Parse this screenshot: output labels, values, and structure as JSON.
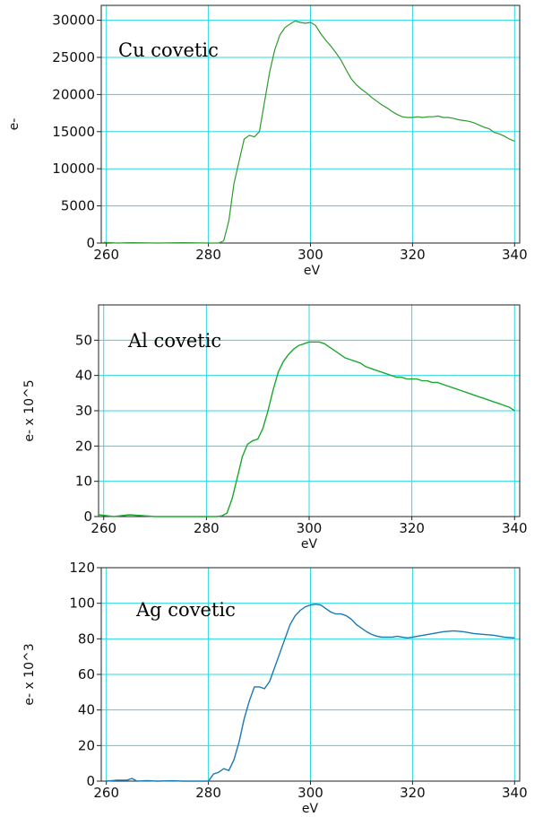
{
  "chart_data": [
    {
      "type": "line",
      "title": "Cu covetic",
      "xlabel": "eV",
      "ylabel": "e-",
      "xlim": [
        259,
        341
      ],
      "ylim": [
        0,
        32000
      ],
      "xticks": [
        260,
        280,
        300,
        320,
        340
      ],
      "yticks": [
        0,
        5000,
        10000,
        15000,
        20000,
        25000,
        30000
      ],
      "xtick_labels": [
        "260",
        "280",
        "300",
        "320",
        "340"
      ],
      "ytick_labels": [
        "0",
        "5000",
        "10000",
        "15000",
        "20000",
        "25000",
        "30000"
      ],
      "grid": true,
      "colors": {
        "line": "#2e9a2e",
        "grid": "#2ed8e0"
      },
      "series": [
        {
          "x": [
            259.5,
            262,
            265,
            270,
            275,
            280,
            282,
            283,
            284,
            285,
            286,
            287,
            288,
            289,
            290,
            291,
            292,
            293,
            294,
            295,
            296,
            297,
            298,
            299,
            300,
            301,
            302,
            303,
            304,
            305,
            306,
            307,
            308,
            309,
            310,
            311,
            312,
            313,
            314,
            315,
            316,
            317,
            318,
            319,
            320,
            321,
            322,
            323,
            324,
            325,
            326,
            327,
            328,
            329,
            330,
            331,
            332,
            333,
            334,
            335,
            336,
            337,
            338,
            339,
            340
          ],
          "y": [
            100,
            0,
            50,
            0,
            50,
            0,
            0,
            300,
            3000,
            8000,
            11000,
            14000,
            14500,
            14300,
            15000,
            19000,
            23000,
            26000,
            28000,
            29000,
            29500,
            29900,
            29700,
            29600,
            29700,
            29300,
            28200,
            27300,
            26500,
            25600,
            24600,
            23300,
            22100,
            21300,
            20700,
            20200,
            19600,
            19100,
            18600,
            18200,
            17700,
            17300,
            17000,
            16900,
            16900,
            17000,
            16900,
            17000,
            17000,
            17100,
            16900,
            16900,
            16800,
            16600,
            16500,
            16400,
            16200,
            15900,
            15600,
            15400,
            14900,
            14700,
            14400,
            14000,
            13700
          ]
        }
      ]
    },
    {
      "type": "line",
      "title": "Al covetic",
      "xlabel": "eV",
      "ylabel": "e- x 10^5",
      "xlim": [
        259,
        341
      ],
      "ylim": [
        0,
        60
      ],
      "xticks": [
        260,
        280,
        300,
        320,
        340
      ],
      "yticks": [
        0,
        10,
        20,
        30,
        40,
        50
      ],
      "xtick_labels": [
        "260",
        "280",
        "300",
        "320",
        "340"
      ],
      "ytick_labels": [
        "0",
        "10",
        "20",
        "30",
        "40",
        "50"
      ],
      "grid": true,
      "colors": {
        "line": "#1aa82e",
        "grid": "#2ed8e0"
      },
      "series": [
        {
          "x": [
            259,
            262,
            265,
            270,
            275,
            280,
            282,
            283,
            284,
            285,
            286,
            287,
            288,
            289,
            290,
            291,
            292,
            293,
            294,
            295,
            296,
            297,
            298,
            299,
            300,
            301,
            302,
            303,
            304,
            305,
            306,
            307,
            308,
            309,
            310,
            311,
            312,
            313,
            314,
            315,
            316,
            317,
            318,
            319,
            320,
            321,
            322,
            323,
            324,
            325,
            326,
            327,
            328,
            329,
            330,
            331,
            332,
            333,
            334,
            335,
            336,
            337,
            338,
            339,
            340
          ],
          "y": [
            0.5,
            0,
            0.5,
            0,
            0,
            0,
            0,
            0.2,
            1,
            5,
            11,
            17,
            20.5,
            21.5,
            22,
            25,
            30,
            36,
            41,
            44,
            46,
            47.5,
            48.5,
            49,
            49.5,
            49.5,
            49.5,
            49,
            48,
            47,
            46,
            45,
            44.5,
            44,
            43.5,
            42.5,
            42,
            41.5,
            41,
            40.5,
            40,
            39.5,
            39.5,
            39,
            39,
            39,
            38.5,
            38.5,
            38,
            38,
            37.5,
            37,
            36.5,
            36,
            35.5,
            35,
            34.5,
            34,
            33.5,
            33,
            32.5,
            32,
            31.5,
            31,
            30
          ]
        }
      ]
    },
    {
      "type": "line",
      "title": "Ag covetic",
      "xlabel": "eV",
      "ylabel": "e- x 10^3",
      "xlim": [
        259,
        341
      ],
      "ylim": [
        0,
        120
      ],
      "xticks": [
        260,
        280,
        300,
        320,
        340
      ],
      "yticks": [
        0,
        20,
        40,
        60,
        80,
        100,
        120
      ],
      "xtick_labels": [
        "260",
        "280",
        "300",
        "320",
        "340"
      ],
      "ytick_labels": [
        "0",
        "20",
        "40",
        "60",
        "80",
        "100",
        "120"
      ],
      "grid": true,
      "colors": {
        "line": "#1a78b4",
        "grid": "#2ed8e0"
      },
      "series": [
        {
          "x": [
            260,
            262,
            264,
            265,
            266,
            268,
            270,
            273,
            275,
            278,
            280,
            281,
            282,
            283,
            284,
            285,
            286,
            287,
            288,
            289,
            290,
            291,
            292,
            293,
            294,
            295,
            296,
            297,
            298,
            299,
            300,
            301,
            302,
            303,
            304,
            305,
            306,
            307,
            308,
            309,
            310,
            311,
            312,
            313,
            314,
            315,
            316,
            317,
            318,
            319,
            320,
            322,
            324,
            326,
            328,
            330,
            332,
            334,
            336,
            338,
            340
          ],
          "y": [
            0,
            0.5,
            0.5,
            1.5,
            0,
            0.3,
            0,
            0.2,
            0,
            0,
            0,
            4,
            5,
            7,
            6,
            12,
            22,
            35,
            45,
            53,
            53,
            52,
            56,
            64,
            72,
            80,
            88,
            93,
            96,
            98,
            99,
            99.5,
            99,
            97,
            95,
            94,
            94,
            93,
            91,
            88,
            86,
            84,
            82.5,
            81.5,
            81,
            81,
            81,
            81.5,
            81,
            80.5,
            81,
            82,
            83,
            84,
            84.5,
            84,
            83,
            82.5,
            82,
            81,
            80.5
          ]
        }
      ]
    }
  ]
}
